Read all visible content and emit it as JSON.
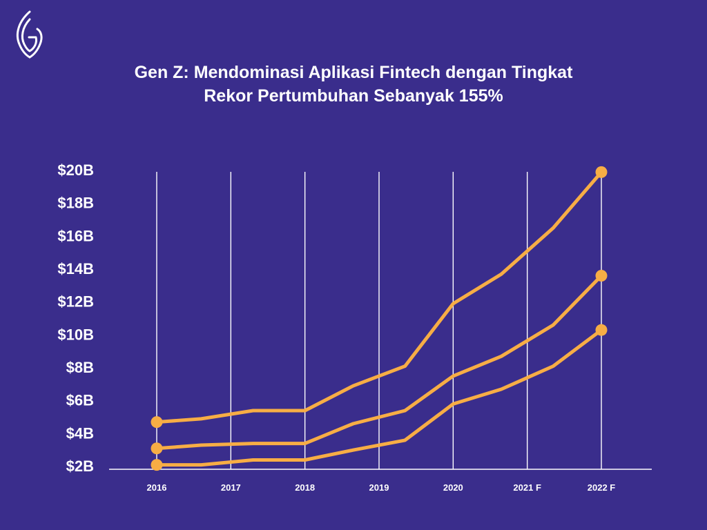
{
  "colors": {
    "background": "#3a2d8c",
    "line": "#f7ad45",
    "grid": "#ffffff",
    "text": "#ffffff"
  },
  "logo": {
    "icon": "leaf-g-logo-icon"
  },
  "chart_data": {
    "type": "line",
    "title_lines": [
      "Gen Z: Mendominasi Aplikasi Fintech dengan Tingkat",
      "Rekor Pertumbuhan Sebanyak 155%"
    ],
    "xlabel": "",
    "ylabel": "",
    "categories": [
      "2016",
      "2017",
      "2018",
      "2019",
      "2020",
      "2021 F",
      "2022 F"
    ],
    "x_range": [
      2016,
      2022
    ],
    "ylim": [
      2,
      20
    ],
    "y_ticks": [
      2,
      4,
      6,
      8,
      10,
      12,
      14,
      16,
      18,
      20
    ],
    "y_tick_labels": [
      "$2B",
      "$4B",
      "$6B",
      "$8B",
      "$10B",
      "$12B",
      "$14B",
      "$16B",
      "$18B",
      "$20B"
    ],
    "grid": "vertical",
    "series": [
      {
        "x": [
          2016,
          2016.6,
          2017.3,
          2018,
          2018.65,
          2019.35,
          2020,
          2020.65,
          2021.35,
          2022
        ],
        "values": [
          4.7,
          4.9,
          5.4,
          5.4,
          6.9,
          8.1,
          11.9,
          13.7,
          16.5,
          19.9
        ],
        "end_markers": true
      },
      {
        "x": [
          2016,
          2016.6,
          2017.3,
          2018,
          2018.65,
          2019.35,
          2020,
          2020.65,
          2021.35,
          2022
        ],
        "values": [
          3.1,
          3.3,
          3.4,
          3.4,
          4.6,
          5.4,
          7.5,
          8.7,
          10.6,
          13.6
        ],
        "end_markers": true
      },
      {
        "x": [
          2016,
          2016.6,
          2017.3,
          2018,
          2018.65,
          2019.35,
          2020,
          2020.65,
          2021.35,
          2022
        ],
        "values": [
          2.1,
          2.1,
          2.4,
          2.4,
          3.0,
          3.6,
          5.8,
          6.7,
          8.1,
          10.3
        ],
        "end_markers": true
      }
    ]
  }
}
